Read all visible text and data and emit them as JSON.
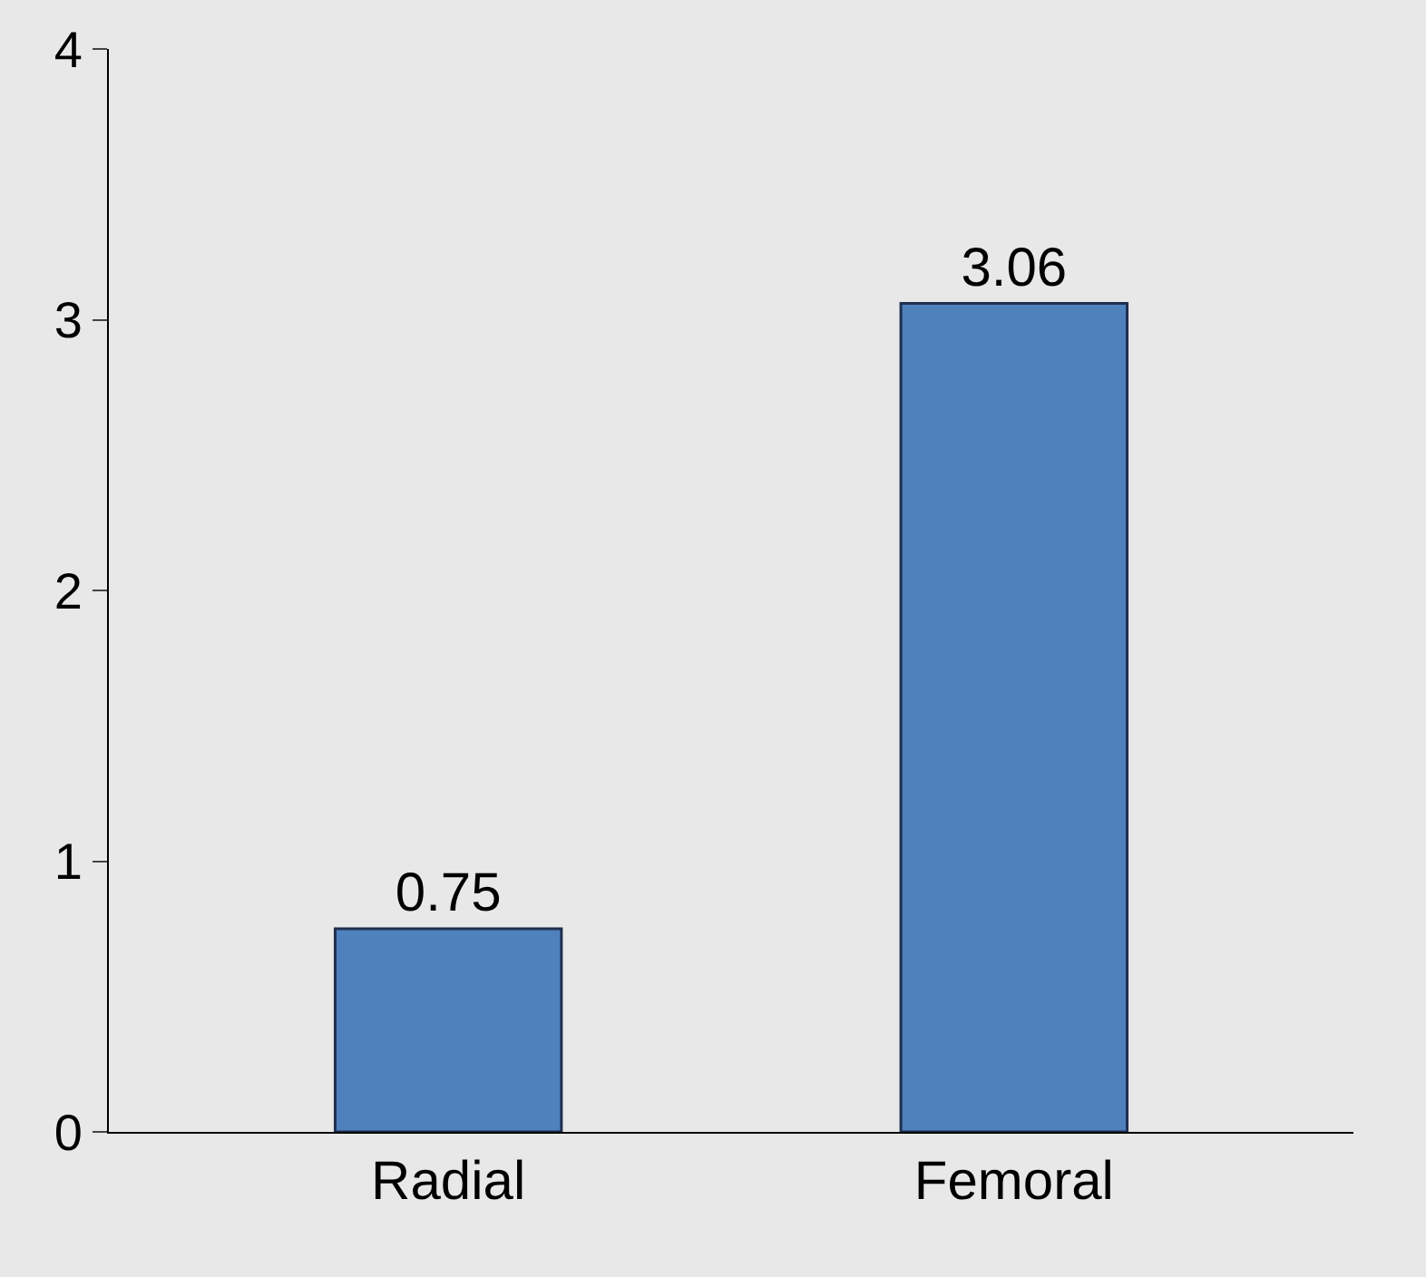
{
  "chart_data": {
    "type": "bar",
    "categories": [
      "Radial",
      "Femoral"
    ],
    "values": [
      0.75,
      3.06
    ],
    "color": "#4f81bd",
    "ylim": [
      0,
      4
    ],
    "yticks": [
      0,
      1,
      2,
      3,
      4
    ],
    "data_labels": true,
    "grid": false
  }
}
